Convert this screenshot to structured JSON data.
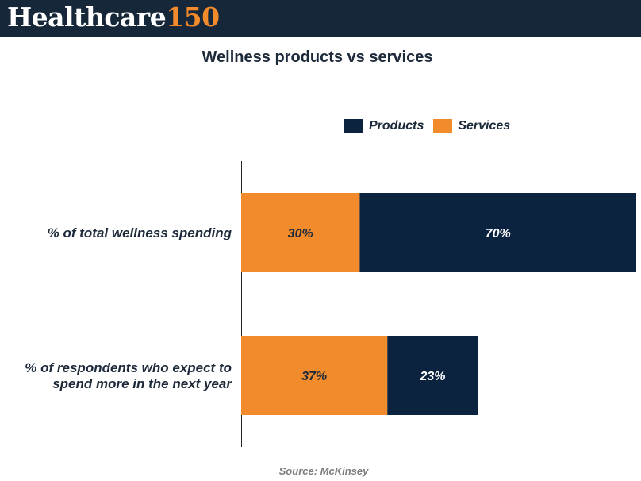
{
  "brand": {
    "name": "Healthcare",
    "number": "150"
  },
  "colors": {
    "products": "#0c2340",
    "services": "#f28b2b",
    "header_bg": "#16273a"
  },
  "source": "Source: McKinsey",
  "chart_data": {
    "type": "bar",
    "orientation": "horizontal",
    "stacked": true,
    "title": "Wellness products vs services",
    "legend_position": "top-right",
    "categories": [
      "% of total wellness spending",
      "% of respondents who expect to spend more in the next year"
    ],
    "series": [
      {
        "name": "Services",
        "values": [
          30,
          37
        ],
        "labels": [
          "30%",
          "37%"
        ]
      },
      {
        "name": "Products",
        "values": [
          70,
          23
        ],
        "labels": [
          "70%",
          "23%"
        ]
      }
    ],
    "xlim": [
      0,
      100
    ],
    "grid": false
  }
}
